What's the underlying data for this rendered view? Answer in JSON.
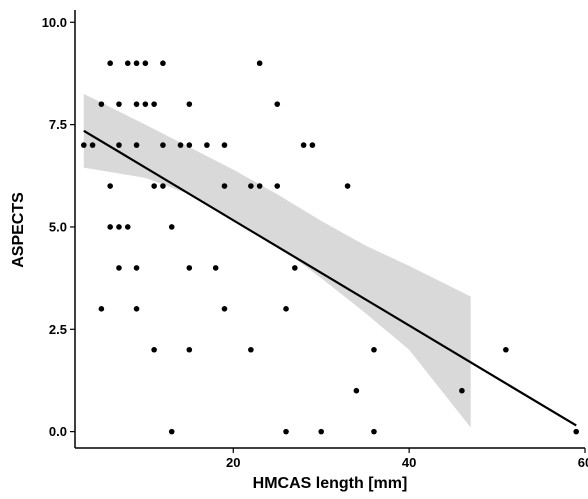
{
  "chart_data": {
    "type": "scatter",
    "xlabel": "HMCAS length [mm]",
    "ylabel": "ASPECTS",
    "xlim": [
      2,
      60
    ],
    "ylim": [
      -0.4,
      10.3
    ],
    "x_ticks": [
      20,
      40,
      60
    ],
    "x_tick_labels": [
      "20",
      "40",
      "60"
    ],
    "y_ticks": [
      0,
      2.5,
      5,
      7.5,
      10
    ],
    "y_tick_labels": [
      "0.0",
      "2.5",
      "5.0",
      "7.5",
      "10.0"
    ],
    "grid": false,
    "points": [
      {
        "x": 3,
        "y": 7
      },
      {
        "x": 4,
        "y": 7
      },
      {
        "x": 5,
        "y": 8
      },
      {
        "x": 5,
        "y": 3
      },
      {
        "x": 6,
        "y": 9
      },
      {
        "x": 6,
        "y": 6
      },
      {
        "x": 6,
        "y": 5
      },
      {
        "x": 7,
        "y": 8
      },
      {
        "x": 7,
        "y": 7
      },
      {
        "x": 7,
        "y": 5
      },
      {
        "x": 7,
        "y": 4
      },
      {
        "x": 8,
        "y": 9
      },
      {
        "x": 8,
        "y": 5
      },
      {
        "x": 9,
        "y": 9
      },
      {
        "x": 9,
        "y": 8
      },
      {
        "x": 9,
        "y": 7
      },
      {
        "x": 9,
        "y": 4
      },
      {
        "x": 9,
        "y": 3
      },
      {
        "x": 10,
        "y": 9
      },
      {
        "x": 10,
        "y": 8
      },
      {
        "x": 11,
        "y": 8
      },
      {
        "x": 11,
        "y": 6
      },
      {
        "x": 11,
        "y": 2
      },
      {
        "x": 12,
        "y": 9
      },
      {
        "x": 12,
        "y": 7
      },
      {
        "x": 12,
        "y": 6
      },
      {
        "x": 13,
        "y": 5
      },
      {
        "x": 13,
        "y": 0
      },
      {
        "x": 14,
        "y": 7
      },
      {
        "x": 15,
        "y": 8
      },
      {
        "x": 15,
        "y": 7
      },
      {
        "x": 15,
        "y": 4
      },
      {
        "x": 15,
        "y": 2
      },
      {
        "x": 17,
        "y": 7
      },
      {
        "x": 18,
        "y": 4
      },
      {
        "x": 19,
        "y": 7
      },
      {
        "x": 19,
        "y": 6
      },
      {
        "x": 19,
        "y": 3
      },
      {
        "x": 22,
        "y": 6
      },
      {
        "x": 22,
        "y": 2
      },
      {
        "x": 23,
        "y": 9
      },
      {
        "x": 23,
        "y": 6
      },
      {
        "x": 25,
        "y": 8
      },
      {
        "x": 25,
        "y": 6
      },
      {
        "x": 26,
        "y": 3
      },
      {
        "x": 26,
        "y": 0
      },
      {
        "x": 27,
        "y": 4
      },
      {
        "x": 28,
        "y": 7
      },
      {
        "x": 29,
        "y": 7
      },
      {
        "x": 30,
        "y": 0
      },
      {
        "x": 33,
        "y": 6
      },
      {
        "x": 34,
        "y": 1
      },
      {
        "x": 36,
        "y": 2
      },
      {
        "x": 36,
        "y": 0
      },
      {
        "x": 46,
        "y": 1
      },
      {
        "x": 51,
        "y": 2
      },
      {
        "x": 59,
        "y": 0
      }
    ],
    "regression_line": {
      "x": [
        3,
        59
      ],
      "y": [
        7.35,
        0.15
      ]
    },
    "confidence_band": {
      "x": [
        3,
        10,
        15,
        20,
        25,
        30,
        35,
        40,
        47
      ],
      "upper": [
        8.25,
        7.5,
        6.95,
        6.4,
        5.8,
        5.15,
        4.55,
        4.05,
        3.3
      ],
      "lower": [
        6.45,
        6.2,
        5.8,
        5.2,
        4.55,
        3.75,
        2.9,
        2.0,
        0.1
      ]
    },
    "colors": {
      "points": "#000000",
      "line": "#000000",
      "band": "#d9d9d9",
      "axis": "#000000"
    }
  }
}
